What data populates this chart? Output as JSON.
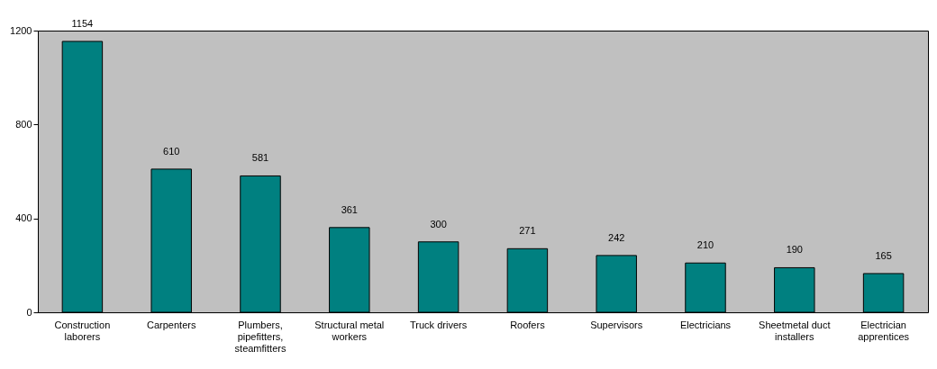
{
  "chart_data": {
    "type": "bar",
    "categories": [
      "Construction laborers",
      "Carpenters",
      "Plumbers, pipefitters, steamfitters",
      "Structural metal workers",
      "Truck drivers",
      "Roofers",
      "Supervisors",
      "Electricians",
      "Sheetmetal duct installers",
      "Electrician apprentices"
    ],
    "values": [
      1154,
      610,
      581,
      361,
      300,
      271,
      242,
      210,
      190,
      165
    ],
    "color": "#008080",
    "ylim": [
      0,
      1200
    ],
    "yticks": [
      0,
      400,
      800,
      1200
    ],
    "grid": false,
    "data_labels": true
  }
}
